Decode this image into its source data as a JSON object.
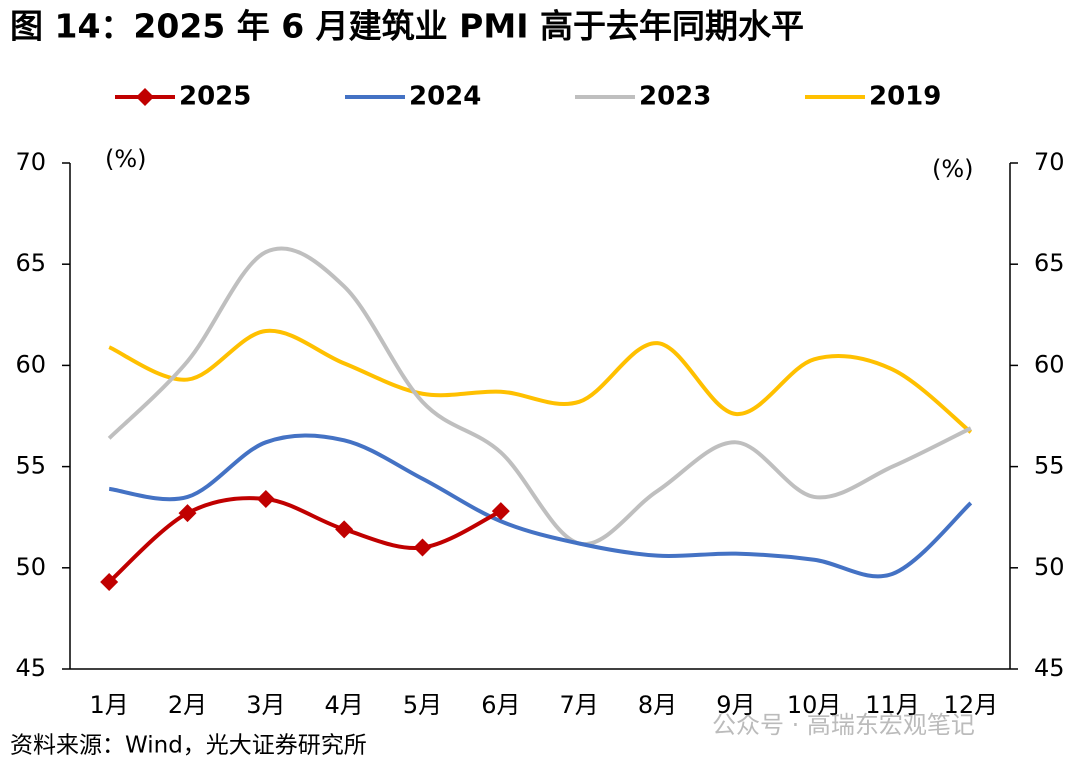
{
  "chart_data": {
    "type": "line",
    "title": "图 14：2025 年 6 月建筑业 PMI 高于去年同期水平",
    "ylabel": "(%)",
    "y2label": "(%)",
    "categories": [
      "1月",
      "2月",
      "3月",
      "4月",
      "5月",
      "6月",
      "7月",
      "8月",
      "9月",
      "10月",
      "11月",
      "12月"
    ],
    "series": [
      {
        "name": "2025",
        "color": "#c00000",
        "marker": "diamond",
        "values": [
          49.3,
          52.7,
          53.4,
          51.9,
          51.0,
          52.8,
          null,
          null,
          null,
          null,
          null,
          null
        ]
      },
      {
        "name": "2024",
        "color": "#4472c4",
        "values": [
          53.9,
          53.5,
          56.2,
          56.3,
          54.4,
          52.3,
          51.2,
          50.6,
          50.7,
          50.4,
          49.7,
          53.2
        ]
      },
      {
        "name": "2023",
        "color": "#bfbfbf",
        "values": [
          56.4,
          60.2,
          65.6,
          63.9,
          58.2,
          55.7,
          51.2,
          53.8,
          56.2,
          53.5,
          55.0,
          56.9
        ]
      },
      {
        "name": "2019",
        "color": "#ffc000",
        "values": [
          60.9,
          59.3,
          61.7,
          60.1,
          58.6,
          58.7,
          58.2,
          61.1,
          57.6,
          60.3,
          59.8,
          56.7
        ]
      }
    ],
    "ylim": [
      45,
      70
    ],
    "yticks": [
      45,
      50,
      55,
      60,
      65,
      70
    ],
    "y2lim": [
      45,
      70
    ],
    "y2ticks": [
      45,
      50,
      55,
      60,
      65,
      70
    ],
    "legend": "top",
    "source": "资料来源：Wind，光大证券研究所",
    "watermark": "公众号 · 高瑞东宏观笔记"
  }
}
